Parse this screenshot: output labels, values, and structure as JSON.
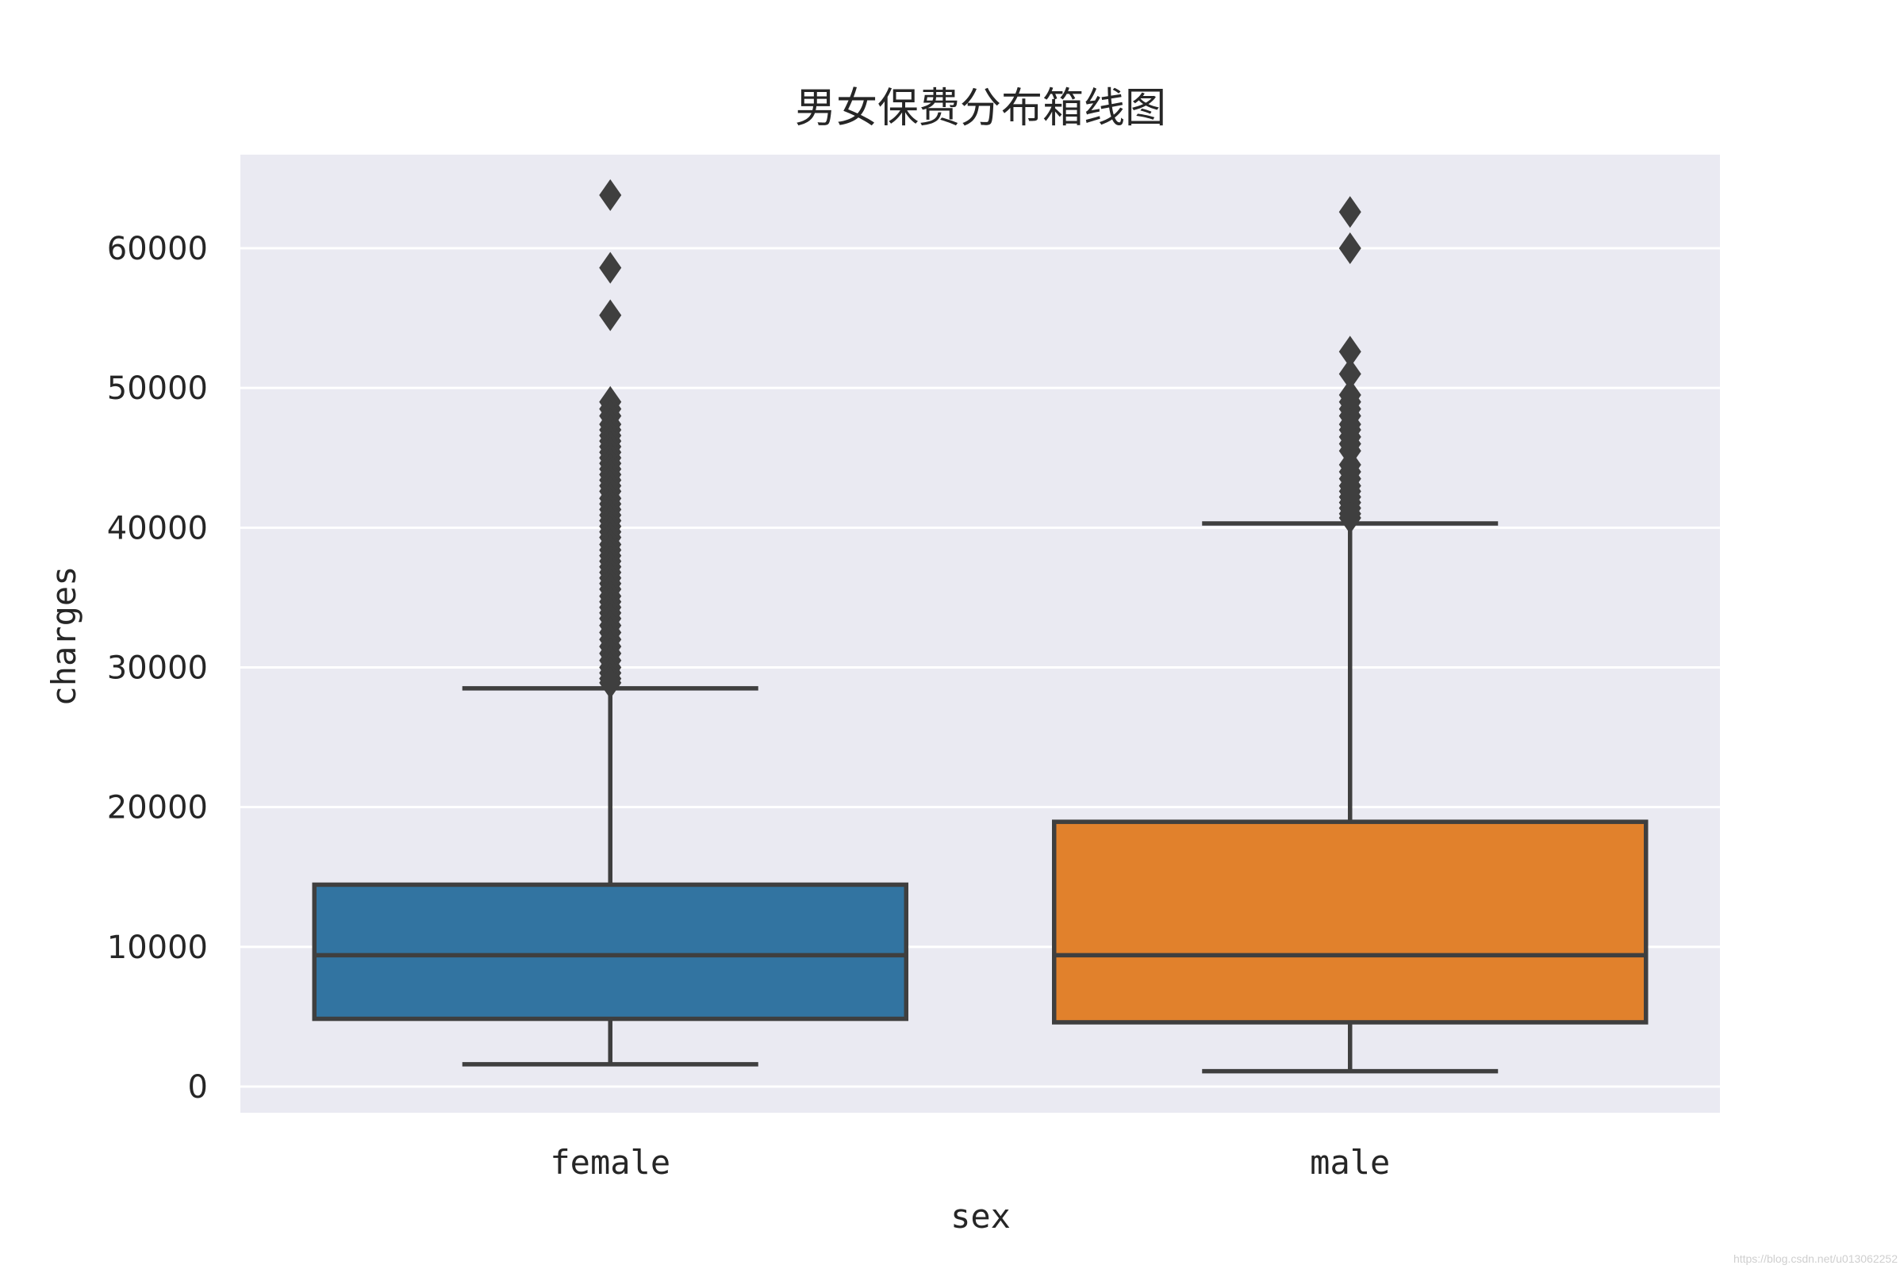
{
  "chart_data": {
    "type": "box",
    "title": "男女保费分布箱线图",
    "xlabel": "sex",
    "ylabel": "charges",
    "ylim": [
      -2000,
      68500
    ],
    "yticks": [
      0,
      10000,
      20000,
      30000,
      40000,
      50000,
      60000
    ],
    "grid": true,
    "background_color": "#eaeaf2",
    "grid_color": "#ffffff",
    "line_color": "#3f3f3f",
    "categories": [
      "female",
      "male"
    ],
    "boxes": [
      {
        "name": "female",
        "color": "#3274a1",
        "whisker_low": 1600,
        "q1": 4850,
        "median": 9400,
        "q3": 14450,
        "whisker_high": 28500,
        "outliers": [
          63800,
          58600,
          55200,
          49000,
          48500,
          48000,
          47400,
          47000,
          46600,
          46200,
          45800,
          45400,
          45000,
          44600,
          44200,
          43800,
          43400,
          43000,
          42600,
          42100,
          41700,
          41300,
          40900,
          40500,
          40100,
          39700,
          39300,
          38800,
          38400,
          38000,
          37600,
          37200,
          36800,
          36400,
          36000,
          35600,
          35100,
          34700,
          34300,
          33900,
          33500,
          33000,
          32500,
          32000,
          31500,
          31000,
          30500,
          30000,
          29600,
          29200,
          28900
        ]
      },
      {
        "name": "male",
        "color": "#e1812c",
        "whisker_low": 1100,
        "q1": 4600,
        "median": 9400,
        "q3": 18950,
        "whisker_high": 40300,
        "outliers": [
          62600,
          60000,
          52600,
          51000,
          49500,
          49000,
          48500,
          48000,
          47400,
          47000,
          46500,
          46000,
          45500,
          44500,
          44000,
          43500,
          43000,
          42600,
          42200,
          41800,
          41400,
          41000,
          40700
        ]
      }
    ]
  },
  "watermark": "https://blog.csdn.net/u013062252"
}
